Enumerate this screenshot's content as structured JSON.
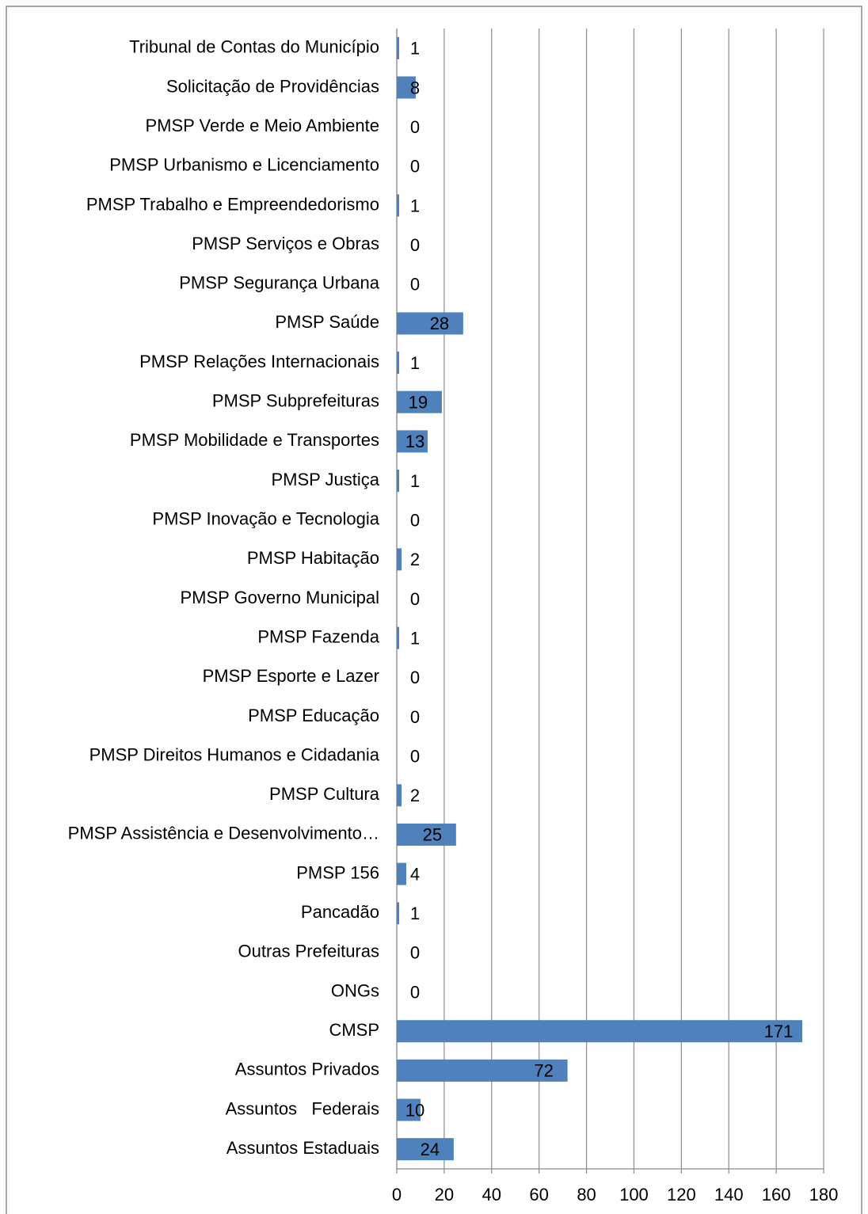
{
  "chart_data": {
    "type": "bar",
    "orientation": "horizontal",
    "categories": [
      "Tribunal de Contas do Município",
      "Solicitação de Providências",
      "PMSP Verde e Meio Ambiente",
      "PMSP Urbanismo e Licenciamento",
      "PMSP Trabalho e Empreendedorismo",
      "PMSP Serviços e Obras",
      "PMSP Segurança Urbana",
      "PMSP Saúde",
      "PMSP Relações Internacionais",
      "PMSP Subprefeituras",
      "PMSP Mobilidade e Transportes",
      "PMSP Justiça",
      "PMSP Inovação e Tecnologia",
      "PMSP Habitação",
      "PMSP Governo Municipal",
      "PMSP Fazenda",
      "PMSP Esporte e Lazer",
      "PMSP Educação",
      "PMSP Direitos Humanos e Cidadania",
      "PMSP Cultura",
      "PMSP Assistência e Desenvolvimento…",
      "PMSP 156",
      "Pancadão",
      "Outras Prefeituras",
      "ONGs",
      "CMSP",
      "Assuntos Privados",
      "Assuntos   Federais",
      "Assuntos Estaduais"
    ],
    "values": [
      1,
      8,
      0,
      0,
      1,
      0,
      0,
      28,
      1,
      19,
      13,
      1,
      0,
      2,
      0,
      1,
      0,
      0,
      0,
      2,
      25,
      4,
      1,
      0,
      0,
      171,
      72,
      10,
      24
    ],
    "color": "#4f81bd",
    "xlim": [
      0,
      180
    ],
    "xticks": [
      0,
      20,
      40,
      60,
      80,
      100,
      120,
      140,
      160,
      180
    ],
    "grid": true
  }
}
